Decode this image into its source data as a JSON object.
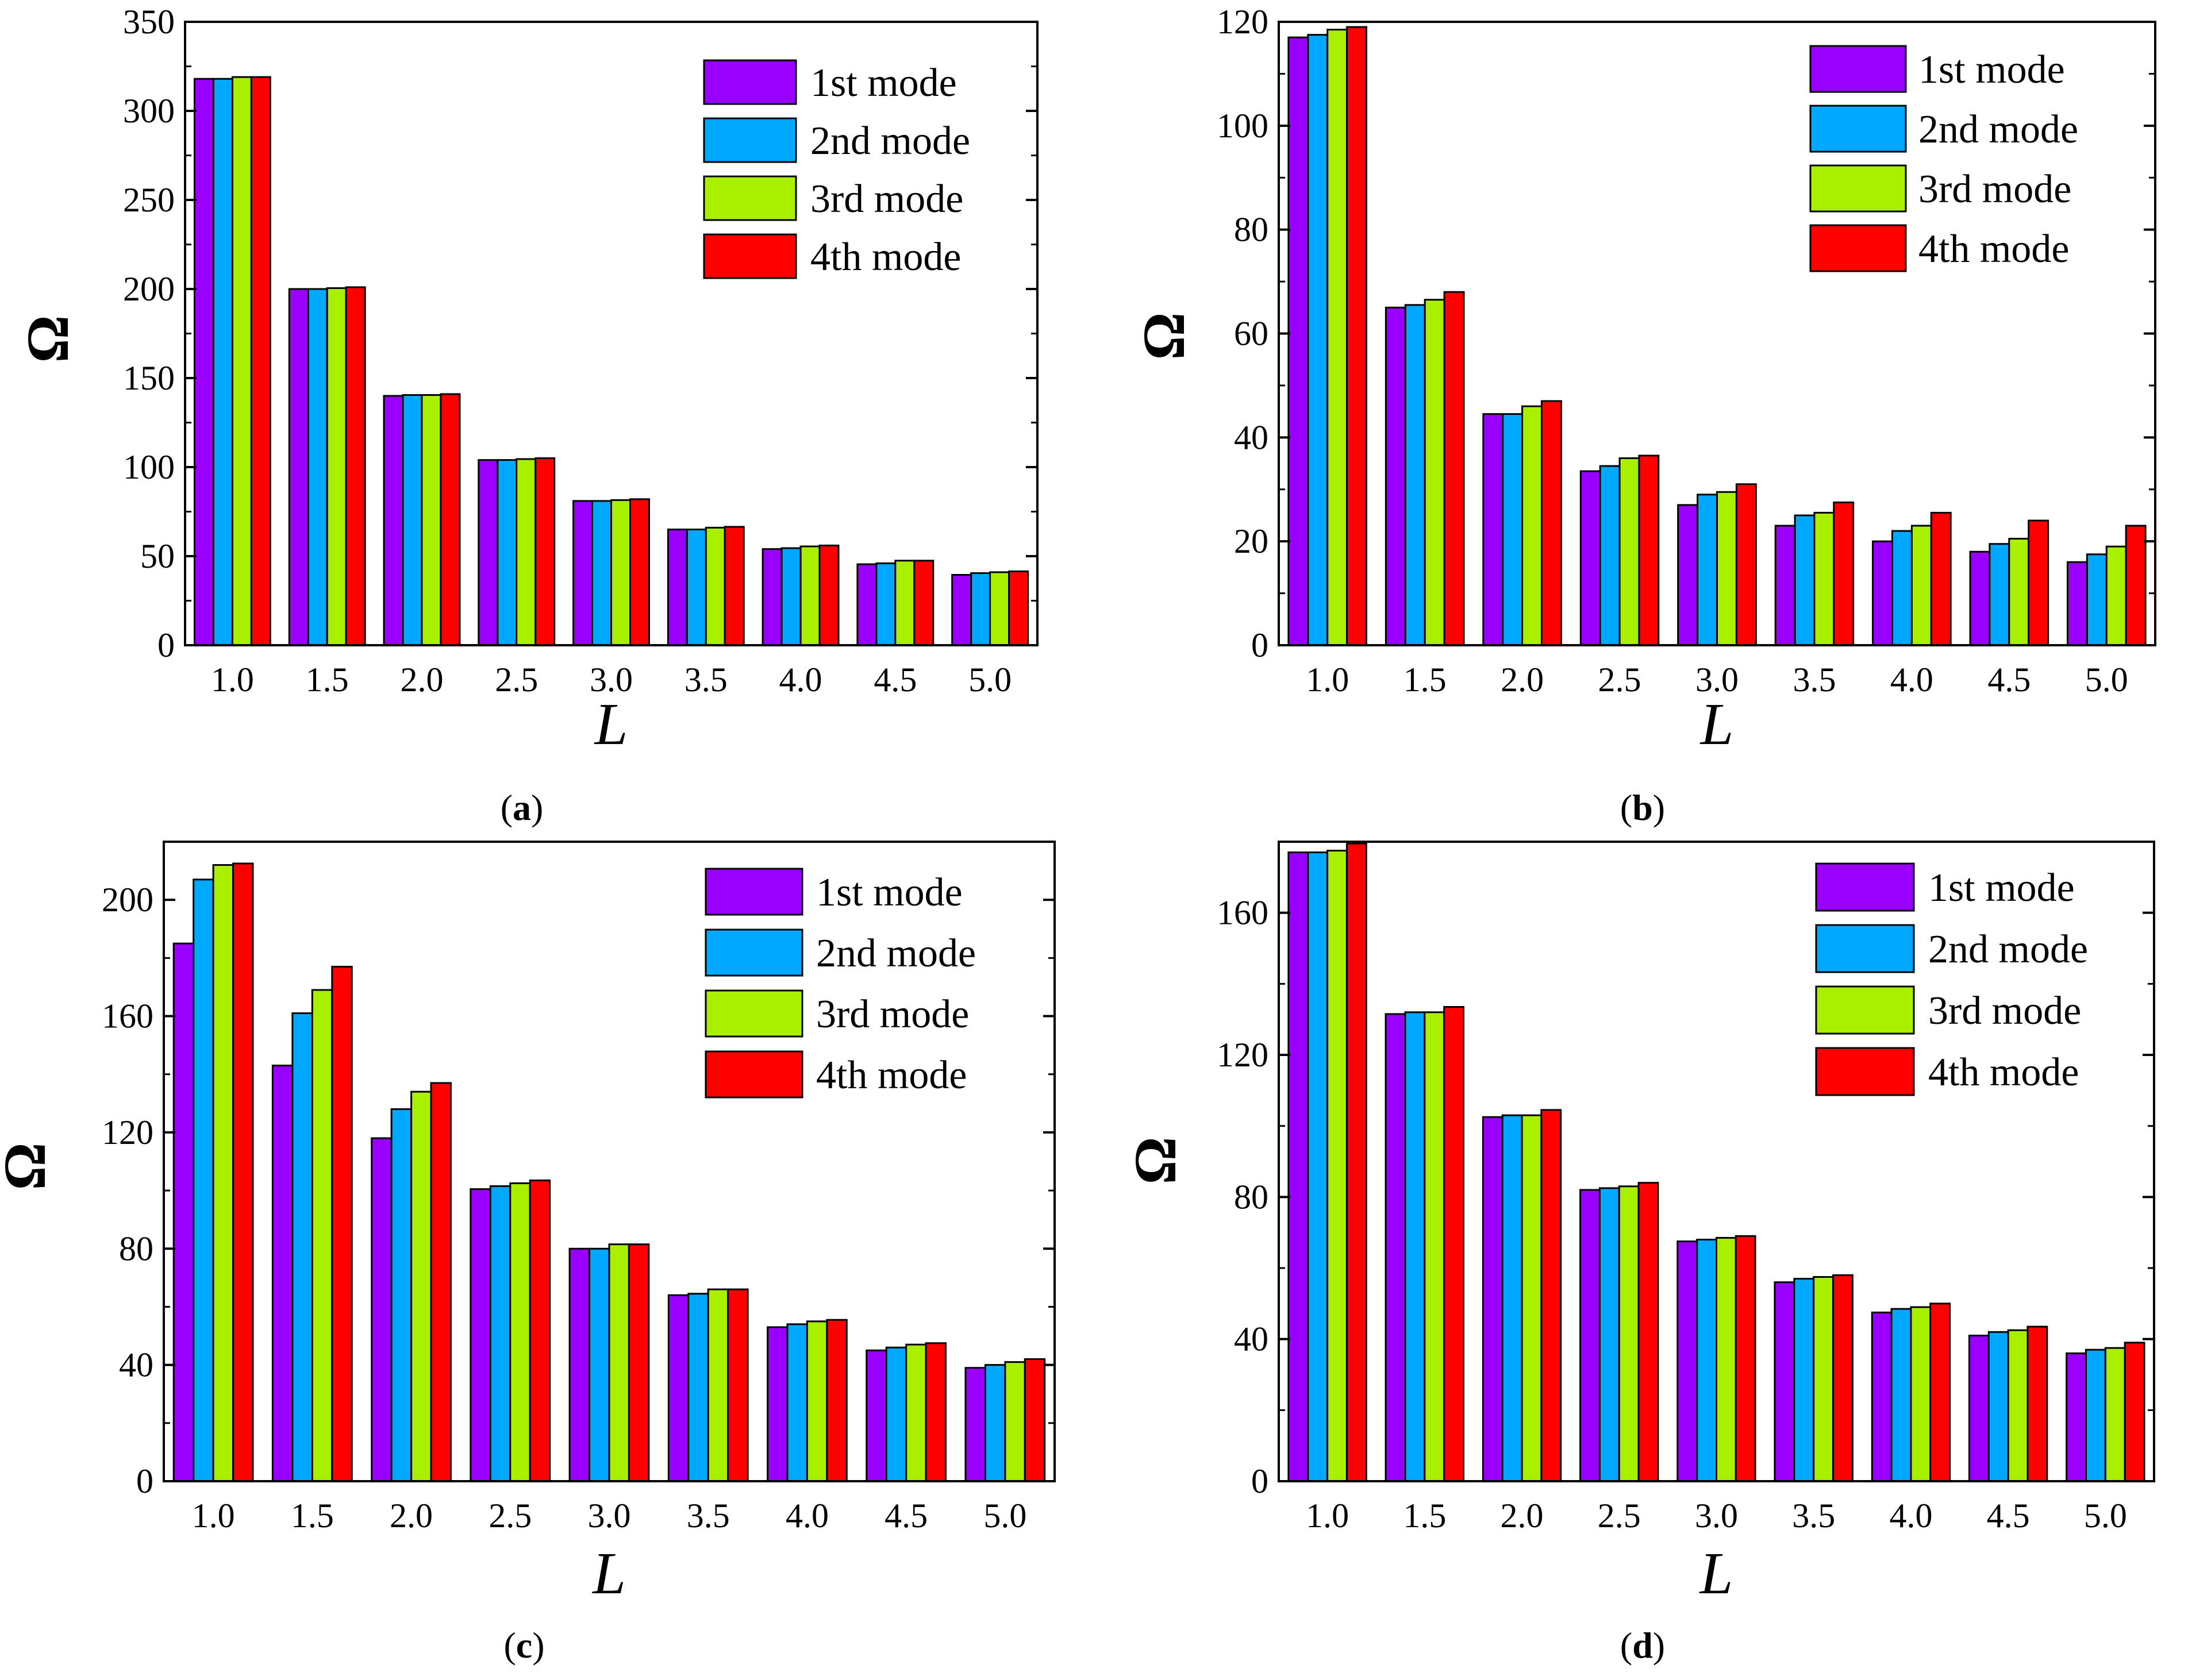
{
  "colors": {
    "series": [
      "#9900ff",
      "#00a8ff",
      "#a8f000",
      "#ff0000"
    ],
    "axis": "#000000"
  },
  "chart_data": [
    {
      "type": "bar",
      "panel": "a",
      "caption": {
        "open": "(",
        "letter": "a",
        "close": ")"
      },
      "xlabel": "L",
      "ylabel": "Ω",
      "categories": [
        "1.0",
        "1.5",
        "2.0",
        "2.5",
        "3.0",
        "3.5",
        "4.0",
        "4.5",
        "5.0"
      ],
      "ylim": [
        0,
        350
      ],
      "yticks": [
        0,
        50,
        100,
        150,
        200,
        250,
        300,
        350
      ],
      "legend_position": "top-right",
      "series": [
        {
          "name": "1st mode",
          "values": [
            318,
            200,
            140,
            104,
            81,
            65,
            54,
            45.5,
            39.5
          ]
        },
        {
          "name": "2nd mode",
          "values": [
            318,
            200,
            140.5,
            104,
            81,
            65,
            54.5,
            46,
            40.5
          ]
        },
        {
          "name": "3rd mode",
          "values": [
            319,
            200.5,
            140.5,
            104.5,
            81.5,
            66,
            55.5,
            47.5,
            41
          ]
        },
        {
          "name": "4th mode",
          "values": [
            319,
            201,
            141,
            105,
            82,
            66.5,
            56,
            47.5,
            41.5
          ]
        }
      ]
    },
    {
      "type": "bar",
      "panel": "b",
      "caption": {
        "open": "(",
        "letter": "b",
        "close": ")"
      },
      "xlabel": "L",
      "ylabel": "Ω",
      "categories": [
        "1.0",
        "1.5",
        "2.0",
        "2.5",
        "3.0",
        "3.5",
        "4.0",
        "4.5",
        "5.0"
      ],
      "ylim": [
        0,
        120
      ],
      "yticks": [
        0,
        20,
        40,
        60,
        80,
        100,
        120
      ],
      "legend_position": "top-right",
      "series": [
        {
          "name": "1st mode",
          "values": [
            117,
            65,
            44.5,
            33.5,
            27,
            23,
            20,
            18,
            16
          ]
        },
        {
          "name": "2nd mode",
          "values": [
            117.5,
            65.5,
            44.5,
            34.5,
            29,
            25,
            22,
            19.5,
            17.5
          ]
        },
        {
          "name": "3rd mode",
          "values": [
            118.5,
            66.5,
            46,
            36,
            29.5,
            25.5,
            23,
            20.5,
            19
          ]
        },
        {
          "name": "4th mode",
          "values": [
            119,
            68,
            47,
            36.5,
            31,
            27.5,
            25.5,
            24,
            23
          ]
        }
      ]
    },
    {
      "type": "bar",
      "panel": "c",
      "caption": {
        "open": "(",
        "letter": "c",
        "close": ")"
      },
      "xlabel": "L",
      "ylabel": "Ω",
      "categories": [
        "1.0",
        "1.5",
        "2.0",
        "2.5",
        "3.0",
        "3.5",
        "4.0",
        "4.5",
        "5.0"
      ],
      "ylim": [
        0,
        220
      ],
      "yticks": [
        0,
        40,
        80,
        120,
        160,
        200
      ],
      "legend_position": "top-right",
      "series": [
        {
          "name": "1st mode",
          "values": [
            185,
            143,
            118,
            100.5,
            80,
            64,
            53,
            45,
            39
          ]
        },
        {
          "name": "2nd mode",
          "values": [
            207,
            161,
            128,
            101.5,
            80,
            64.5,
            54,
            46,
            40
          ]
        },
        {
          "name": "3rd mode",
          "values": [
            212,
            169,
            134,
            102.5,
            81.5,
            66,
            55,
            47,
            41
          ]
        },
        {
          "name": "4th mode",
          "values": [
            212.5,
            177,
            137,
            103.5,
            81.5,
            66,
            55.5,
            47.5,
            42
          ]
        }
      ]
    },
    {
      "type": "bar",
      "panel": "d",
      "caption": {
        "open": "(",
        "letter": "d",
        "close": ")"
      },
      "xlabel": "L",
      "ylabel": "Ω",
      "categories": [
        "1.0",
        "1.5",
        "2.0",
        "2.5",
        "3.0",
        "3.5",
        "4.0",
        "4.5",
        "5.0"
      ],
      "ylim": [
        0,
        180
      ],
      "yticks": [
        0,
        40,
        80,
        120,
        160
      ],
      "legend_position": "top-right",
      "series": [
        {
          "name": "1st mode",
          "values": [
            177,
            131.5,
            102.5,
            82,
            67.5,
            56,
            47.5,
            41,
            36
          ]
        },
        {
          "name": "2nd mode",
          "values": [
            177,
            132,
            103,
            82.5,
            68,
            57,
            48.5,
            42,
            37
          ]
        },
        {
          "name": "3rd mode",
          "values": [
            177.5,
            132,
            103,
            83,
            68.5,
            57.5,
            49,
            42.5,
            37.5
          ]
        },
        {
          "name": "4th mode",
          "values": [
            179.5,
            133.5,
            104.5,
            84,
            69,
            58,
            50,
            43.5,
            39
          ]
        }
      ]
    }
  ]
}
